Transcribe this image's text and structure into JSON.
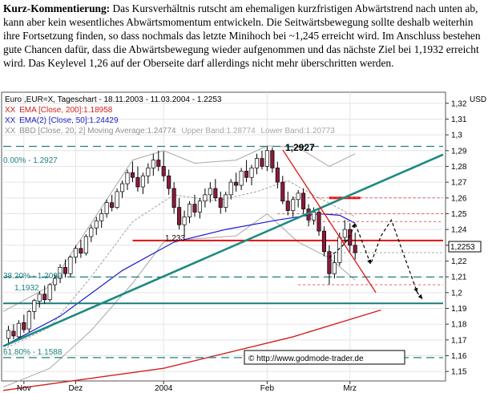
{
  "commentary": {
    "heading": "Kurz-Kommentierung:",
    "body": "Das Kursverhältnis rutscht am ehemaligen kurzfristigen Abwärtstrend nach unten ab, kann aber kein wesentliches Abwärtsmomentum entwickeln. Die Seitwärtsbewegung sollte deshalb weiterhin ihre Fortsetzung finden, so dass nochmals das letzte Minihoch bei ~1,245 erreicht wird. Im Anschluss bestehen gute Chancen dafür, dass die Abwärtsbewegung wieder aufgenommen und das nächste Ziel bei 1,1932 erreicht wird. Das Keylevel 1,26 auf der Oberseite darf allerdings nicht mehr überschritten werden."
  },
  "chart_data": {
    "type": "candlestick",
    "title": "Euro ,EUR=X, Tageschart - 18.11.2003 - 11.03.2004 - 1.2253",
    "legend": [
      {
        "prefix": "XX",
        "text": "EMA [Close, 200]:1.18958",
        "color": "#d02020"
      },
      {
        "prefix": "XX",
        "text": "EMA(2) [Close, 50]:1.24429",
        "color": "#1a1acc"
      },
      {
        "prefix": "XX",
        "text": "BBD [Close, 20, 2] Moving Average:1.24774",
        "color": "#909090"
      },
      {
        "prefix": "",
        "text": "Upper Band:1.28774",
        "color": "#a8a8a8"
      },
      {
        "prefix": "",
        "text": "Lower Band:1.20773",
        "color": "#a8a8a8"
      }
    ],
    "ylabel_unit": "USD",
    "last_price": "1,2253",
    "ylim": [
      1.145,
      1.327
    ],
    "y_ticks": [
      "1,32",
      "1,31",
      "1,3",
      "1,29",
      "1,28",
      "1,27",
      "1,26",
      "1,25",
      "1,24",
      "1,23",
      "1,22",
      "1,21",
      "1,2",
      "1,19",
      "1,18",
      "1,17",
      "1,16",
      "1,15"
    ],
    "x_ticks": [
      {
        "label": "Nov",
        "idx": 3
      },
      {
        "label": "Dez",
        "idx": 13
      },
      {
        "label": "2004",
        "idx": 30
      },
      {
        "label": "Feb",
        "idx": 50
      },
      {
        "label": "Mrz",
        "idx": 66
      }
    ],
    "x_range": [
      -1,
      84
    ],
    "annotations": {
      "fib_0": "0.00% - 1.2927",
      "fib_382": "38.20% - 1.2099",
      "fib_618": "61.80% - 1.1588",
      "level_1932": "1,1932",
      "level_1233": "1,233",
      "peak_label": "1,2927",
      "copyright": "© http://www.godmode-trader.de"
    },
    "levels": {
      "fib_0": 1.2927,
      "fib_382": 1.2099,
      "fib_618": 1.1588,
      "support": 1.1932,
      "resistance_1233": 1.233,
      "key_1260": 1.26,
      "swing_high": 1.245
    },
    "candles": [
      [
        1.171,
        1.179,
        1.1665,
        1.176
      ],
      [
        1.1755,
        1.18,
        1.1705,
        1.1725
      ],
      [
        1.172,
        1.1825,
        1.17,
        1.1805
      ],
      [
        1.181,
        1.186,
        1.1745,
        1.1765
      ],
      [
        1.177,
        1.189,
        1.175,
        1.188
      ],
      [
        1.188,
        1.196,
        1.183,
        1.195
      ],
      [
        1.1945,
        1.201,
        1.1905,
        1.199
      ],
      [
        1.199,
        1.2045,
        1.193,
        1.1955
      ],
      [
        1.1955,
        1.206,
        1.194,
        1.205
      ],
      [
        1.205,
        1.2115,
        1.201,
        1.209
      ],
      [
        1.209,
        1.218,
        1.206,
        1.216
      ],
      [
        1.216,
        1.221,
        1.2095,
        1.212
      ],
      [
        1.212,
        1.2235,
        1.21,
        1.2225
      ],
      [
        1.2225,
        1.23,
        1.2185,
        1.228
      ],
      [
        1.228,
        1.2335,
        1.222,
        1.225
      ],
      [
        1.225,
        1.237,
        1.2235,
        1.2355
      ],
      [
        1.2355,
        1.243,
        1.232,
        1.241
      ],
      [
        1.241,
        1.248,
        1.2365,
        1.2455
      ],
      [
        1.2455,
        1.253,
        1.241,
        1.25
      ],
      [
        1.25,
        1.259,
        1.2475,
        1.257
      ],
      [
        1.257,
        1.262,
        1.2515,
        1.254
      ],
      [
        1.254,
        1.266,
        1.253,
        1.264
      ],
      [
        1.264,
        1.271,
        1.26,
        1.269
      ],
      [
        1.269,
        1.278,
        1.265,
        1.276
      ],
      [
        1.276,
        1.283,
        1.27,
        1.273
      ],
      [
        1.273,
        1.28,
        1.264,
        1.267
      ],
      [
        1.267,
        1.276,
        1.2625,
        1.274
      ],
      [
        1.274,
        1.282,
        1.269,
        1.279
      ],
      [
        1.279,
        1.288,
        1.274,
        1.284
      ],
      [
        1.284,
        1.29,
        1.277,
        1.28
      ],
      [
        1.28,
        1.2895,
        1.2705,
        1.274
      ],
      [
        1.274,
        1.278,
        1.262,
        1.266
      ],
      [
        1.266,
        1.27,
        1.25,
        1.254
      ],
      [
        1.254,
        1.26,
        1.24,
        1.243
      ],
      [
        1.243,
        1.252,
        1.235,
        1.248
      ],
      [
        1.248,
        1.258,
        1.244,
        1.256
      ],
      [
        1.256,
        1.262,
        1.248,
        1.251
      ],
      [
        1.251,
        1.26,
        1.247,
        1.258
      ],
      [
        1.258,
        1.266,
        1.254,
        1.262
      ],
      [
        1.262,
        1.27,
        1.257,
        1.266
      ],
      [
        1.266,
        1.272,
        1.258,
        1.26
      ],
      [
        1.26,
        1.264,
        1.25,
        1.254
      ],
      [
        1.254,
        1.264,
        1.251,
        1.262
      ],
      [
        1.262,
        1.272,
        1.259,
        1.27
      ],
      [
        1.27,
        1.276,
        1.264,
        1.268
      ],
      [
        1.268,
        1.279,
        1.265,
        1.277
      ],
      [
        1.277,
        1.284,
        1.27,
        1.273
      ],
      [
        1.273,
        1.281,
        1.268,
        1.279
      ],
      [
        1.279,
        1.288,
        1.275,
        1.285
      ],
      [
        1.285,
        1.29,
        1.278,
        1.28
      ],
      [
        1.28,
        1.2927,
        1.277,
        1.29
      ],
      [
        1.29,
        1.292,
        1.276,
        1.279
      ],
      [
        1.279,
        1.283,
        1.266,
        1.27
      ],
      [
        1.27,
        1.274,
        1.256,
        1.258
      ],
      [
        1.258,
        1.264,
        1.249,
        1.252
      ],
      [
        1.252,
        1.261,
        1.248,
        1.259
      ],
      [
        1.259,
        1.265,
        1.254,
        1.263
      ],
      [
        1.263,
        1.266,
        1.25,
        1.253
      ],
      [
        1.253,
        1.256,
        1.242,
        1.246
      ],
      [
        1.246,
        1.254,
        1.243,
        1.251
      ],
      [
        1.251,
        1.253,
        1.236,
        1.239
      ],
      [
        1.239,
        1.242,
        1.223,
        1.226
      ],
      [
        1.226,
        1.23,
        1.205,
        1.212
      ],
      [
        1.212,
        1.224,
        1.209,
        1.219
      ],
      [
        1.219,
        1.238,
        1.217,
        1.235
      ],
      [
        1.235,
        1.246,
        1.231,
        1.24
      ],
      [
        1.24,
        1.244,
        1.226,
        1.23
      ],
      [
        1.23,
        1.238,
        1.221,
        1.2253
      ]
    ],
    "ema200": [
      [
        -1,
        1.138
      ],
      [
        30,
        1.152
      ],
      [
        55,
        1.172
      ],
      [
        72,
        1.189
      ]
    ],
    "ema50": [
      [
        -1,
        1.166
      ],
      [
        10,
        1.185
      ],
      [
        22,
        1.214
      ],
      [
        32,
        1.232
      ],
      [
        42,
        1.24
      ],
      [
        52,
        1.246
      ],
      [
        60,
        1.25
      ],
      [
        64,
        1.249
      ],
      [
        67,
        1.244
      ]
    ],
    "bb_mid": [
      [
        -1,
        1.164
      ],
      [
        8,
        1.178
      ],
      [
        16,
        1.21
      ],
      [
        24,
        1.245
      ],
      [
        32,
        1.262
      ],
      [
        40,
        1.258
      ],
      [
        48,
        1.264
      ],
      [
        54,
        1.271
      ],
      [
        60,
        1.26
      ],
      [
        67,
        1.248
      ]
    ],
    "bb_upper": [
      [
        -1,
        1.188
      ],
      [
        8,
        1.204
      ],
      [
        16,
        1.244
      ],
      [
        24,
        1.284
      ],
      [
        30,
        1.29
      ],
      [
        36,
        1.282
      ],
      [
        44,
        1.284
      ],
      [
        50,
        1.293
      ],
      [
        56,
        1.292
      ],
      [
        62,
        1.28
      ],
      [
        67,
        1.288
      ]
    ],
    "bb_lower": [
      [
        -1,
        1.14
      ],
      [
        8,
        1.152
      ],
      [
        16,
        1.176
      ],
      [
        24,
        1.206
      ],
      [
        30,
        1.232
      ],
      [
        36,
        1.234
      ],
      [
        44,
        1.236
      ],
      [
        50,
        1.25
      ],
      [
        56,
        1.232
      ],
      [
        62,
        1.222
      ],
      [
        67,
        1.208
      ]
    ],
    "trend_up": [
      [
        -1,
        1.166
      ],
      [
        84,
        1.2875
      ]
    ],
    "trend_down": [
      [
        53,
        1.2905
      ],
      [
        71,
        1.2
      ]
    ],
    "forecast_path": [
      [
        62,
        1.222
      ],
      [
        65,
        1.231
      ],
      [
        66,
        1.236
      ],
      [
        67,
        1.244
      ],
      [
        70,
        1.218
      ],
      [
        72,
        1.236
      ],
      [
        74,
        1.246
      ],
      [
        79,
        1.2
      ],
      [
        80,
        1.196
      ]
    ]
  }
}
